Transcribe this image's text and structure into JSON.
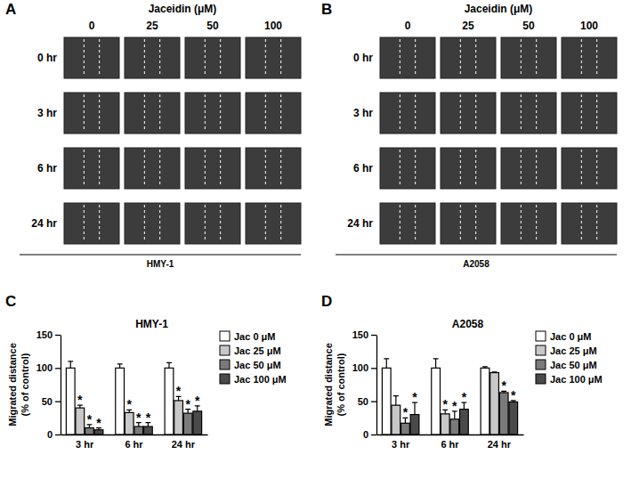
{
  "image_panels": [
    {
      "panel_label": "A",
      "header": "Jaceidin (μM)",
      "columns": [
        "0",
        "25",
        "50",
        "100"
      ],
      "rows": [
        "0 hr",
        "3 hr",
        "6 hr",
        "24 hr"
      ],
      "cell_line": "HMY-1"
    },
    {
      "panel_label": "B",
      "header": "Jaceidin (μM)",
      "columns": [
        "0",
        "25",
        "50",
        "100"
      ],
      "rows": [
        "0 hr",
        "3 hr",
        "6 hr",
        "24 hr"
      ],
      "cell_line": "A2058"
    }
  ],
  "chart_data": [
    {
      "panel_label": "C",
      "type": "bar",
      "title": "HMY-1",
      "y_label": "Migrated distance (% of control)",
      "categories": [
        "3 hr",
        "6 hr",
        "24 hr"
      ],
      "ylim": [
        0,
        150
      ],
      "yticks": [
        0,
        50,
        100,
        150
      ],
      "legend": "right",
      "series": [
        {
          "name": "Jac 0 μM",
          "color": "#ffffff",
          "values": [
            100,
            100,
            100
          ],
          "errors": [
            10,
            6,
            8
          ],
          "annotations": [
            null,
            null,
            null
          ]
        },
        {
          "name": "Jac 25 μM",
          "color": "#c8c8c8",
          "values": [
            40,
            33,
            51
          ],
          "errors": [
            4,
            4,
            6
          ],
          "annotations": [
            "*",
            "*",
            "*"
          ]
        },
        {
          "name": "Jac 50 μM",
          "color": "#7a7a7a",
          "values": [
            10,
            12,
            32
          ],
          "errors": [
            5,
            6,
            6
          ],
          "annotations": [
            "*",
            "*",
            "*"
          ]
        },
        {
          "name": "Jac 100 μM",
          "color": "#4a4a4a",
          "values": [
            7,
            12,
            35
          ],
          "errors": [
            3,
            6,
            8
          ],
          "annotations": [
            "*",
            "*",
            "*"
          ]
        }
      ]
    },
    {
      "panel_label": "D",
      "type": "bar",
      "title": "A2058",
      "y_label": "Migrated distance (% of control)",
      "categories": [
        "3 hr",
        "6 hr",
        "24 hr"
      ],
      "ylim": [
        0,
        150
      ],
      "yticks": [
        0,
        50,
        100,
        150
      ],
      "legend": "right",
      "series": [
        {
          "name": "Jac 0 μM",
          "color": "#ffffff",
          "values": [
            100,
            100,
            100
          ],
          "errors": [
            14,
            14,
            2
          ],
          "annotations": [
            null,
            null,
            null
          ]
        },
        {
          "name": "Jac 25 μM",
          "color": "#c8c8c8",
          "values": [
            44,
            31,
            93
          ],
          "errors": [
            14,
            6,
            1
          ],
          "annotations": [
            null,
            "*",
            null
          ]
        },
        {
          "name": "Jac 50 μM",
          "color": "#7a7a7a",
          "values": [
            17,
            23,
            63
          ],
          "errors": [
            8,
            12,
            2
          ],
          "annotations": [
            "*",
            "*",
            "*"
          ]
        },
        {
          "name": "Jac 100 μM",
          "color": "#4a4a4a",
          "values": [
            30,
            38,
            49
          ],
          "errors": [
            18,
            10,
            2
          ],
          "annotations": [
            "*",
            "*",
            "*"
          ]
        }
      ]
    }
  ]
}
